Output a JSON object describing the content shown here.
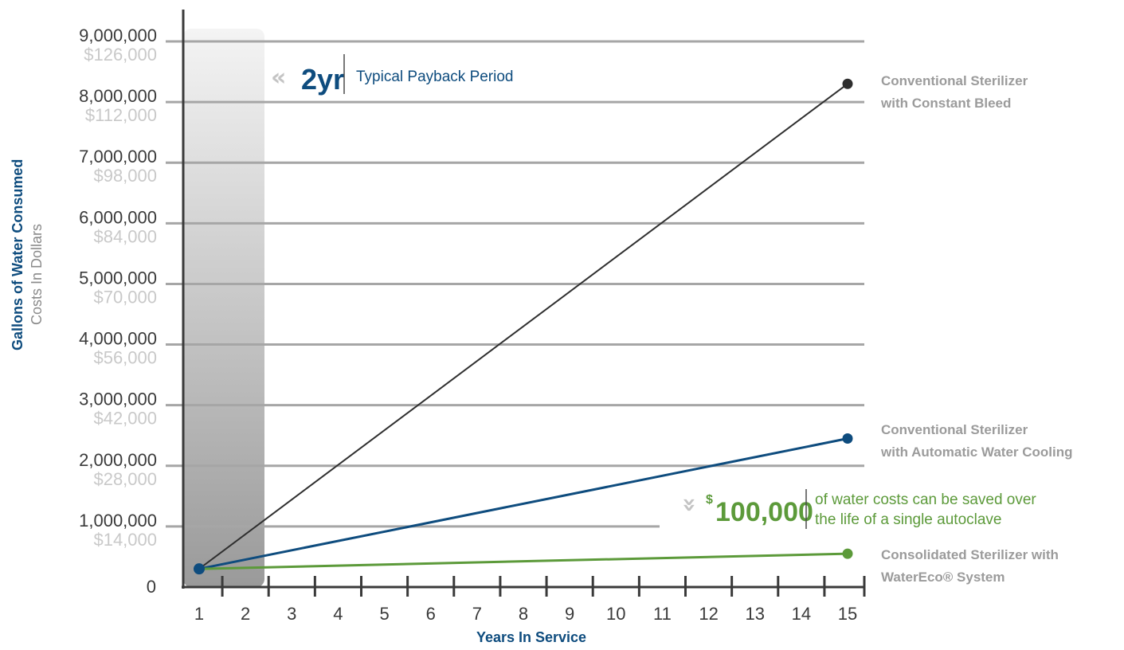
{
  "colors": {
    "black_series": "#2f2f2f",
    "blue_series": "#0e4c7e",
    "green_series": "#5c9a3a",
    "grid": "#a6a6a6",
    "cost_label": "#c9c9c9",
    "series_label": "#9b9b9b"
  },
  "chart_data": {
    "type": "line",
    "xlabel": "Years In Service",
    "ylabel": "Gallons of Water Consumed",
    "ylabel_secondary": "Costs In Dollars",
    "x": [
      1,
      2,
      3,
      4,
      5,
      6,
      7,
      8,
      9,
      10,
      11,
      12,
      13,
      14,
      15
    ],
    "xlim": [
      1,
      15
    ],
    "ylim": [
      0,
      9000000
    ],
    "y_ticks": [
      {
        "value": 0,
        "label": "0",
        "cost": ""
      },
      {
        "value": 1000000,
        "label": "1,000,000",
        "cost": "$14,000"
      },
      {
        "value": 2000000,
        "label": "2,000,000",
        "cost": "$28,000"
      },
      {
        "value": 3000000,
        "label": "3,000,000",
        "cost": "$42,000"
      },
      {
        "value": 4000000,
        "label": "4,000,000",
        "cost": "$56,000"
      },
      {
        "value": 5000000,
        "label": "5,000,000",
        "cost": "$70,000"
      },
      {
        "value": 6000000,
        "label": "6,000,000",
        "cost": "$84,000"
      },
      {
        "value": 7000000,
        "label": "7,000,000",
        "cost": "$98,000"
      },
      {
        "value": 8000000,
        "label": "8,000,000",
        "cost": "$112,000"
      },
      {
        "value": 9000000,
        "label": "9,000,000",
        "cost": "$126,000"
      }
    ],
    "grid": true,
    "series": [
      {
        "name": "Conventional Sterilizer with Constant Bleed",
        "label_lines": [
          "Conventional Sterilizer",
          "with Constant Bleed"
        ],
        "x": [
          1,
          15
        ],
        "y": [
          300000,
          8300000
        ]
      },
      {
        "name": "Conventional Sterilizer with Automatic Water Cooling",
        "label_lines": [
          "Conventional Sterilizer",
          "with Automatic Water Cooling"
        ],
        "x": [
          1,
          15
        ],
        "y": [
          300000,
          2450000
        ]
      },
      {
        "name": "Consolidated Sterilizer with WaterEco® System",
        "label_lines": [
          "Consolidated Sterilizer with",
          "WaterEco® System"
        ],
        "x": [
          1,
          15
        ],
        "y": [
          300000,
          550000
        ]
      }
    ],
    "annotations": {
      "payback": {
        "value": "2yr",
        "text": "Typical Payback Period",
        "period_years": 2
      },
      "savings": {
        "currency": "$",
        "value": "100,000",
        "lines": [
          "of water costs can be saved over",
          "the life of a single autoclave"
        ]
      }
    }
  }
}
